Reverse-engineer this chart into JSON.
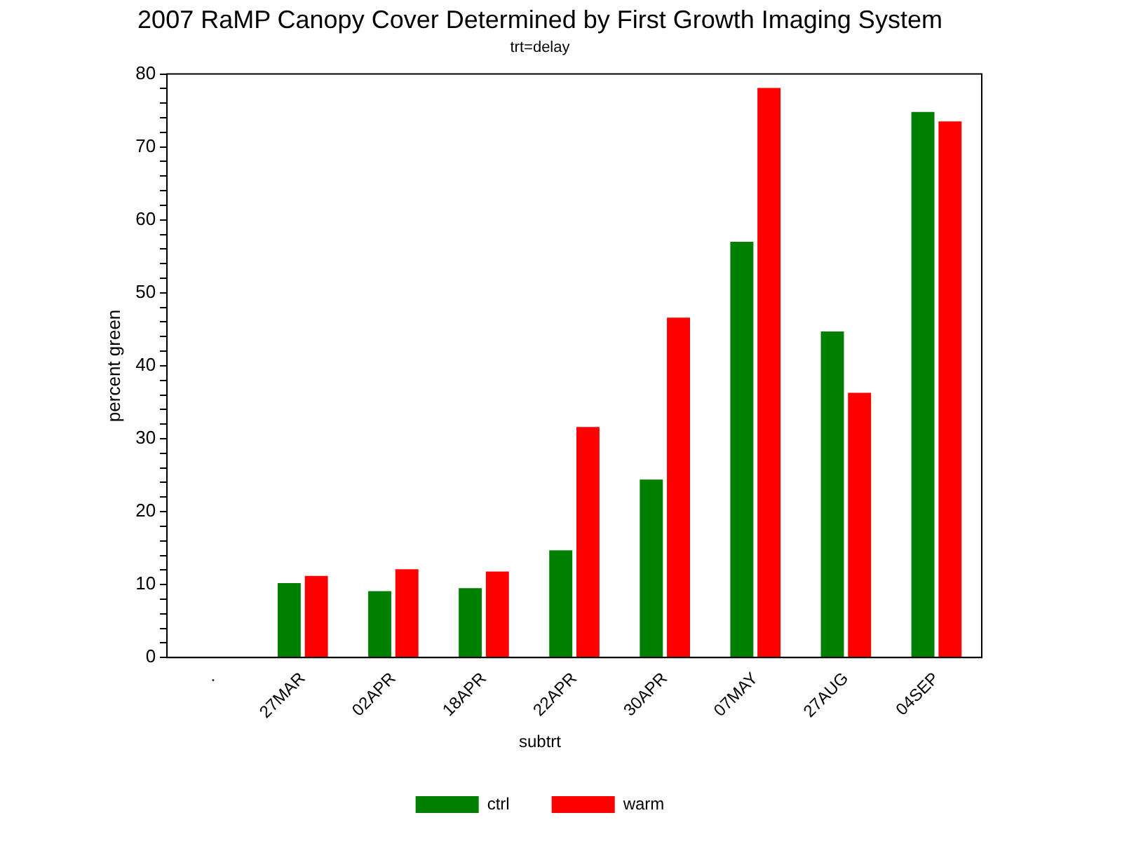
{
  "chart_data": {
    "type": "bar",
    "title": "2007 RaMP Canopy Cover Determined by First Growth Imaging System",
    "subtitle": "trt=delay",
    "ylabel": "percent green",
    "legend_title": "subtrt",
    "categories": [
      ".",
      "27MAR",
      "02APR",
      "18APR",
      "22APR",
      "30APR",
      "07MAY",
      "27AUG",
      "04SEP"
    ],
    "series": [
      {
        "name": "ctrl",
        "color": "#008000",
        "values": [
          null,
          10.2,
          9.1,
          9.5,
          14.7,
          24.4,
          57.0,
          44.7,
          74.8
        ]
      },
      {
        "name": "warm",
        "color": "#ff0000",
        "values": [
          null,
          11.2,
          12.1,
          11.8,
          31.6,
          46.6,
          78.1,
          36.3,
          73.5
        ]
      }
    ],
    "ylim": [
      0,
      80
    ],
    "yticks": [
      0,
      {
        "value": 2,
        "label": null
      },
      {
        "value": 4,
        "label": null
      },
      {
        "value": 6,
        "label": null
      },
      {
        "value": 8,
        "label": null
      },
      10,
      {
        "value": 12,
        "label": null
      },
      {
        "value": 14,
        "label": null
      },
      {
        "value": 16,
        "label": null
      },
      {
        "value": 18,
        "label": null
      },
      20,
      {
        "value": 22,
        "label": null
      },
      {
        "value": 24,
        "label": null
      },
      {
        "value": 26,
        "label": null
      },
      {
        "value": 28,
        "label": null
      },
      30,
      {
        "value": 32,
        "label": null
      },
      {
        "value": 34,
        "label": null
      },
      {
        "value": 36,
        "label": null
      },
      {
        "value": 38,
        "label": null
      },
      40,
      {
        "value": 42,
        "label": null
      },
      {
        "value": 44,
        "label": null
      },
      {
        "value": 46,
        "label": null
      },
      {
        "value": 48,
        "label": null
      },
      50,
      {
        "value": 52,
        "label": null
      },
      {
        "value": 54,
        "label": null
      },
      {
        "value": 56,
        "label": null
      },
      {
        "value": 58,
        "label": null
      },
      60,
      {
        "value": 62,
        "label": null
      },
      {
        "value": 64,
        "label": null
      },
      {
        "value": 66,
        "label": null
      },
      {
        "value": 68,
        "label": null
      },
      70,
      {
        "value": 72,
        "label": null
      },
      {
        "value": 74,
        "label": null
      },
      {
        "value": 76,
        "label": null
      },
      {
        "value": 78,
        "label": null
      },
      80
    ],
    "grid": false,
    "legend": "bottom"
  }
}
